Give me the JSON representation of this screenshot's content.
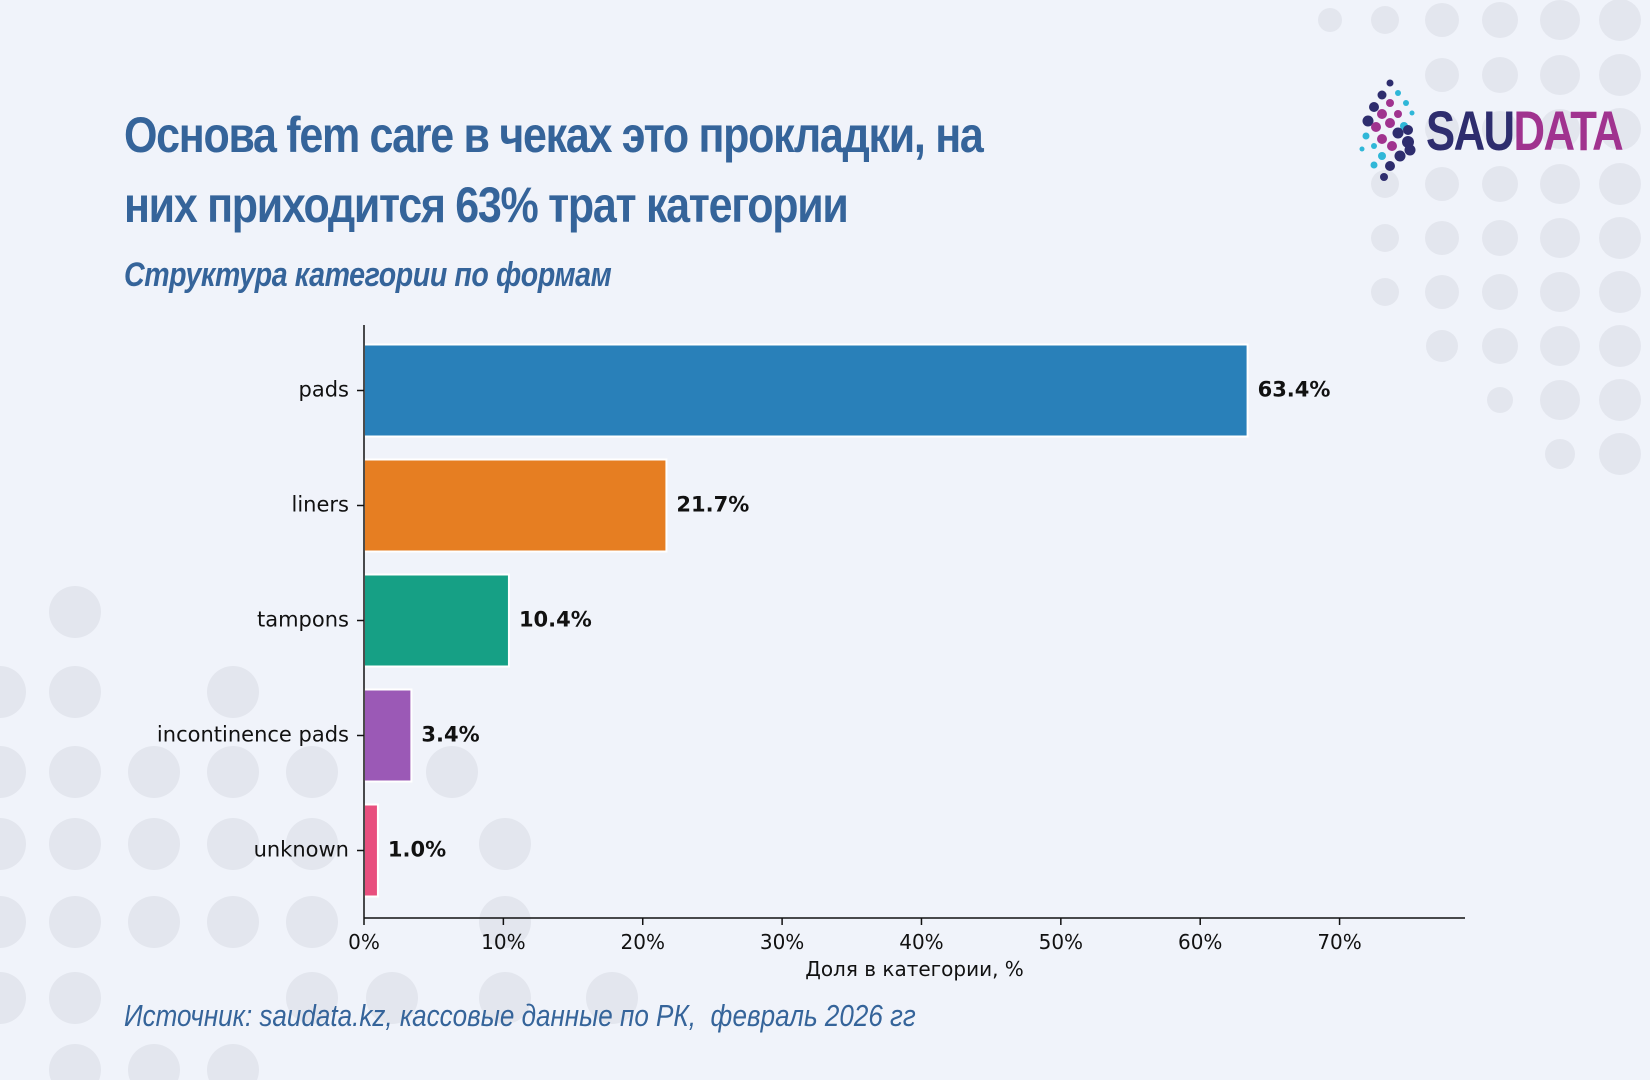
{
  "title": "Основа fem care в чеках это прокладки, на них приходится 63% трат категории",
  "subtitle": "Структура категории по формам",
  "source": "Источник: saudata.kz, кассовые данные по РК,  февраль 2026 гг",
  "logo": {
    "part1": "SAU",
    "part2": "DATA"
  },
  "colors": {
    "background": "#f0f3fa",
    "accent": "#35649a",
    "logo_dark": "#2e2d6e",
    "logo_magenta": "#a0338f",
    "logo_cyan": "#2fb7d8",
    "dots": "#e3e6ee"
  },
  "chart_data": {
    "type": "bar",
    "orientation": "horizontal",
    "categories": [
      "pads",
      "liners",
      "tampons",
      "incontinence pads",
      "unknown"
    ],
    "values": [
      63.4,
      21.7,
      10.4,
      3.4,
      1.0
    ],
    "value_labels": [
      "63.4%",
      "21.7%",
      "10.4%",
      "3.4%",
      "1.0%"
    ],
    "colors": [
      "#2980b9",
      "#e67e22",
      "#16a085",
      "#9b59b6",
      "#e84f7e"
    ],
    "xlabel": "Доля в категории, %",
    "ylabel": "",
    "xlim": [
      0,
      79
    ],
    "xticks": [
      0,
      10,
      20,
      30,
      40,
      50,
      60,
      70
    ],
    "xtick_labels": [
      "0%",
      "10%",
      "20%",
      "30%",
      "40%",
      "50%",
      "60%",
      "70%"
    ],
    "grid": false,
    "legend": "none"
  }
}
